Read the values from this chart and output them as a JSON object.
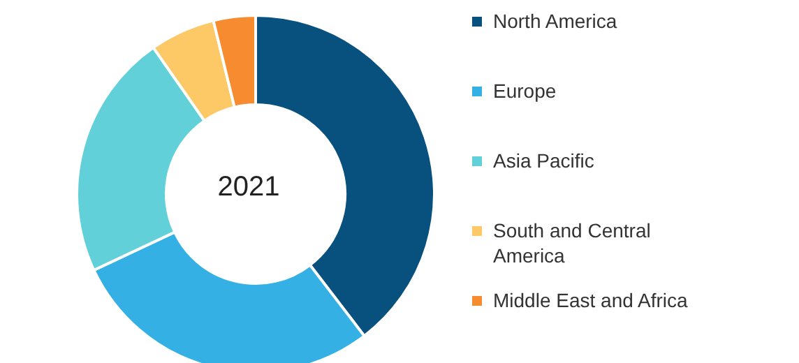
{
  "chart_data": {
    "type": "donut",
    "title": "2021",
    "categories": [
      "North America",
      "Europe",
      "Asia Pacific",
      "South and Central America",
      "Middle East and Africa"
    ],
    "values": [
      39.6,
      28.4,
      22.3,
      5.9,
      3.8
    ],
    "colors": [
      "#08507e",
      "#35b0e5",
      "#62d0d8",
      "#fdc866",
      "#f68b2f"
    ],
    "legend": "right"
  }
}
